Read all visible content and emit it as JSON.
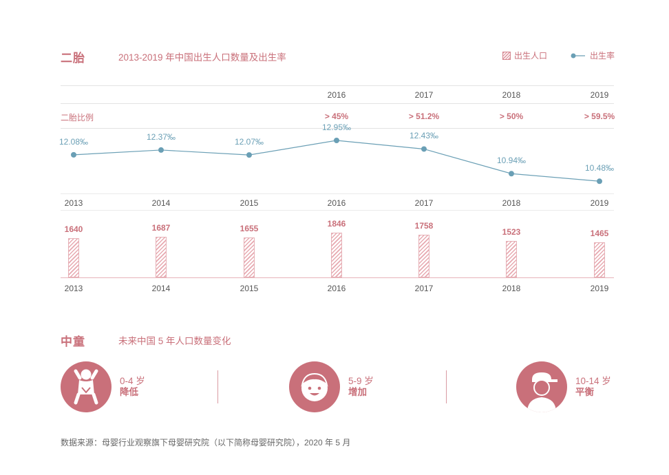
{
  "section1": {
    "tag": "二胎",
    "title": "2013-2019 年中国出生人口数量及出生率"
  },
  "legend": {
    "bar_label": "出生人口",
    "line_label": "出生率"
  },
  "second_child": {
    "row_label": "二胎比例",
    "years": [
      "2016",
      "2017",
      "2018",
      "2019"
    ],
    "values": [
      "> 45%",
      "> 51.2%",
      "> 50%",
      "> 59.5%"
    ]
  },
  "chart_data": [
    {
      "type": "line",
      "x": [
        "2013",
        "2014",
        "2015",
        "2016",
        "2017",
        "2018",
        "2019"
      ],
      "values": [
        12.08,
        12.37,
        12.07,
        12.95,
        12.43,
        10.94,
        10.48
      ],
      "labels": [
        "12.08‰",
        "12.37‰",
        "12.07‰",
        "12.95‰",
        "12.43‰",
        "10.94‰",
        "10.48‰"
      ],
      "series_name": "出生率",
      "color": "#6a9fb5"
    },
    {
      "type": "bar",
      "categories": [
        "2013",
        "2014",
        "2015",
        "2016",
        "2017",
        "2018",
        "2019"
      ],
      "values": [
        1640,
        1687,
        1655,
        1846,
        1758,
        1523,
        1465
      ],
      "series_name": "出生人口",
      "color": "#c9707a"
    }
  ],
  "section2": {
    "tag": "中童",
    "title": "未来中国 5 年人口数量变化"
  },
  "age_groups": [
    {
      "range": "0-4 岁",
      "trend": "降低",
      "icon": "baby-icon"
    },
    {
      "range": "5-9 岁",
      "trend": "增加",
      "icon": "child-face-icon"
    },
    {
      "range": "10-14 岁",
      "trend": "平衡",
      "icon": "kid-cap-icon"
    }
  ],
  "source": "数据来源：母婴行业观察旗下母婴研究院（以下简称母婴研究院），2020 年 5 月",
  "colors": {
    "accent": "#c9707a",
    "line": "#6a9fb5"
  }
}
